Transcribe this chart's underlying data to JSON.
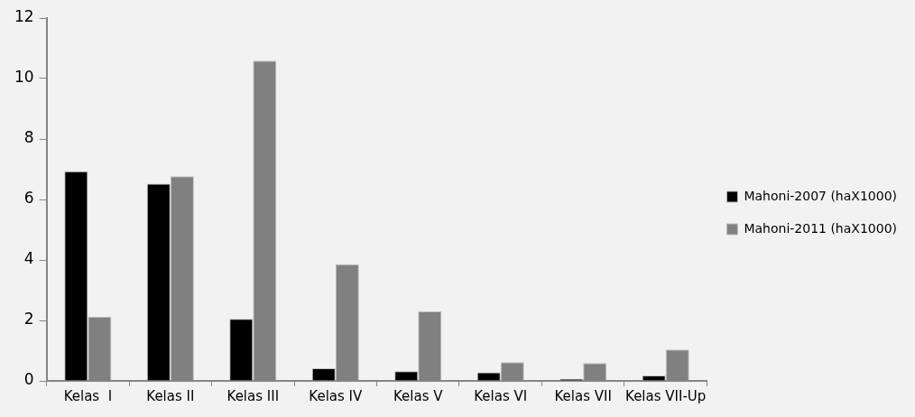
{
  "chart_data": {
    "type": "bar",
    "categories": [
      "Kelas  I",
      "Kelas II",
      "Kelas III",
      "Kelas IV",
      "Kelas V",
      "Kelas VI",
      "Kelas VII",
      "Kelas VII-Up"
    ],
    "series": [
      {
        "name": "Mahoni-2007 (haX1000)",
        "color": "#000000",
        "values": [
          6.93,
          6.52,
          2.05,
          0.42,
          0.32,
          0.28,
          0.07,
          0.18
        ]
      },
      {
        "name": "Mahoni-2011 (haX1000)",
        "color": "#808080",
        "values": [
          2.12,
          6.77,
          10.59,
          3.86,
          2.3,
          0.62,
          0.59,
          1.04
        ]
      }
    ],
    "ylim": [
      0,
      12
    ],
    "yticks": [
      0,
      2,
      4,
      6,
      8,
      10,
      12
    ],
    "grid": false,
    "legend": "right"
  }
}
